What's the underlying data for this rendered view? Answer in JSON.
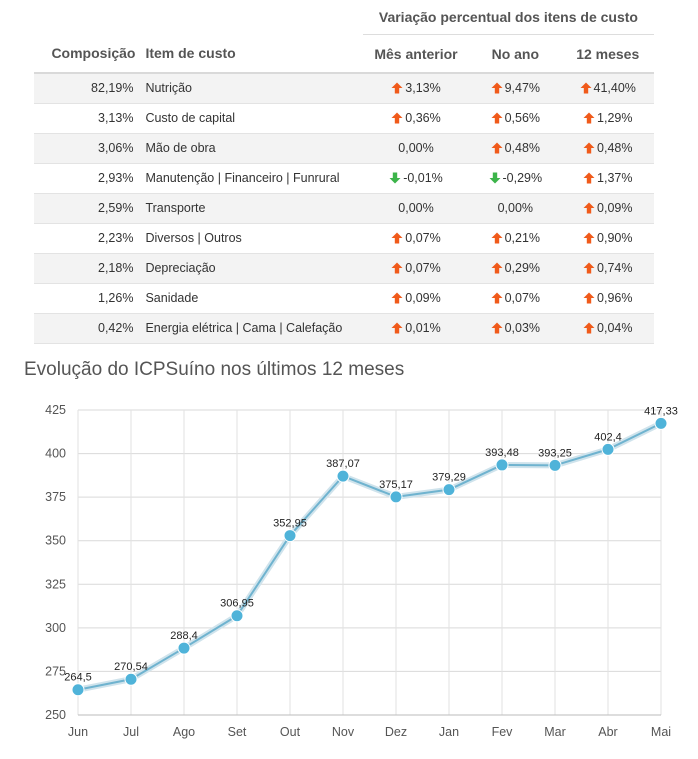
{
  "table": {
    "group_header": "Variação percentual dos itens de custo",
    "columns": {
      "composition": "Composição",
      "item": "Item de custo",
      "previous_month": "Mês anterior",
      "year": "No ano",
      "twelve_months": "12 meses"
    },
    "rows": [
      {
        "composition": "82,19%",
        "item": "Nutrição",
        "previous_month": {
          "value": "3,13%",
          "trend": "up"
        },
        "year": {
          "value": "9,47%",
          "trend": "up"
        },
        "twelve_months": {
          "value": "41,40%",
          "trend": "up"
        }
      },
      {
        "composition": "3,13%",
        "item": "Custo de capital",
        "previous_month": {
          "value": "0,36%",
          "trend": "up"
        },
        "year": {
          "value": "0,56%",
          "trend": "up"
        },
        "twelve_months": {
          "value": "1,29%",
          "trend": "up"
        }
      },
      {
        "composition": "3,06%",
        "item": "Mão de obra",
        "previous_month": {
          "value": "0,00%",
          "trend": "none"
        },
        "year": {
          "value": "0,48%",
          "trend": "up"
        },
        "twelve_months": {
          "value": "0,48%",
          "trend": "up"
        }
      },
      {
        "composition": "2,93%",
        "item": "Manutenção | Financeiro | Funrural",
        "previous_month": {
          "value": "-0,01%",
          "trend": "down"
        },
        "year": {
          "value": "-0,29%",
          "trend": "down"
        },
        "twelve_months": {
          "value": "1,37%",
          "trend": "up"
        }
      },
      {
        "composition": "2,59%",
        "item": "Transporte",
        "previous_month": {
          "value": "0,00%",
          "trend": "none"
        },
        "year": {
          "value": "0,00%",
          "trend": "none"
        },
        "twelve_months": {
          "value": "0,09%",
          "trend": "up"
        }
      },
      {
        "composition": "2,23%",
        "item": "Diversos | Outros",
        "previous_month": {
          "value": "0,07%",
          "trend": "up"
        },
        "year": {
          "value": "0,21%",
          "trend": "up"
        },
        "twelve_months": {
          "value": "0,90%",
          "trend": "up"
        }
      },
      {
        "composition": "2,18%",
        "item": "Depreciação",
        "previous_month": {
          "value": "0,07%",
          "trend": "up"
        },
        "year": {
          "value": "0,29%",
          "trend": "up"
        },
        "twelve_months": {
          "value": "0,74%",
          "trend": "up"
        }
      },
      {
        "composition": "1,26%",
        "item": "Sanidade",
        "previous_month": {
          "value": "0,09%",
          "trend": "up"
        },
        "year": {
          "value": "0,07%",
          "trend": "up"
        },
        "twelve_months": {
          "value": "0,96%",
          "trend": "up"
        }
      },
      {
        "composition": "0,42%",
        "item": "Energia elétrica | Cama | Calefação",
        "previous_month": {
          "value": "0,01%",
          "trend": "up"
        },
        "year": {
          "value": "0,03%",
          "trend": "up"
        },
        "twelve_months": {
          "value": "0,04%",
          "trend": "up"
        }
      }
    ],
    "colors": {
      "up": "#f05a1a",
      "down": "#3cb44a"
    }
  },
  "chart_title": "Evolução do ICPSuíno nos últimos 12 meses",
  "chart_data": {
    "type": "line",
    "title": "Evolução do ICPSuíno nos últimos 12 meses",
    "categories": [
      "Jun",
      "Jul",
      "Ago",
      "Set",
      "Out",
      "Nov",
      "Dez",
      "Jan",
      "Fev",
      "Mar",
      "Abr",
      "Mai"
    ],
    "series": [
      {
        "values": [
          264.5,
          270.54,
          288.4,
          306.95,
          352.95,
          387.07,
          375.17,
          379.29,
          393.48,
          393.25,
          402.4,
          417.33
        ],
        "labels": [
          "264,5",
          "270,54",
          "288,4",
          "306,95",
          "352,95",
          "387,07",
          "375,17",
          "379,29",
          "393,48",
          "393,25",
          "402,4",
          "417,33"
        ]
      }
    ],
    "yticks": [
      250,
      275,
      300,
      325,
      350,
      375,
      400,
      425
    ],
    "ylim": [
      250,
      425
    ],
    "grid": true,
    "line_color": "#6fb3cf",
    "marker_color": "#4fb3d9"
  }
}
